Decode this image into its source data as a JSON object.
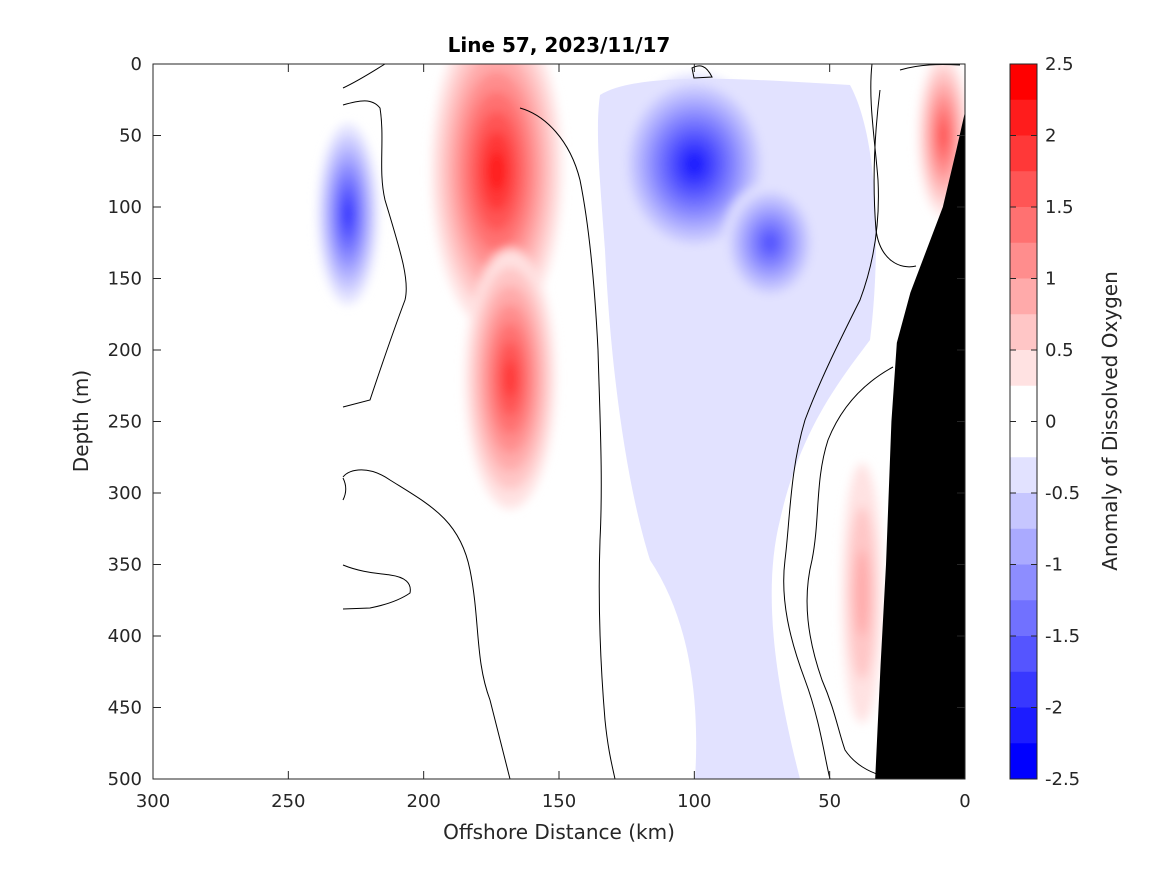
{
  "chart_data": {
    "type": "heatmap",
    "title": "Line 57, 2023/11/17",
    "xlabel": "Offshore Distance (km)",
    "ylabel": "Depth (m)",
    "xlim": [
      300,
      0
    ],
    "ylim": [
      500,
      0
    ],
    "x_ticks": [
      300,
      250,
      200,
      150,
      100,
      50,
      0
    ],
    "y_ticks": [
      0,
      50,
      100,
      150,
      200,
      250,
      300,
      350,
      400,
      450,
      500
    ],
    "y_reversed": true,
    "x_reversed": true,
    "colorbar": {
      "label": "Anomaly of Dissolved Oxygen",
      "range": [
        -2.5,
        2.5
      ],
      "step": 0.25,
      "ticks": [
        2.5,
        2,
        1.5,
        1,
        0.5,
        0,
        -0.5,
        -1,
        -1.5,
        -2,
        -2.5
      ],
      "tick_labels": [
        "2.5",
        "2",
        "1.5",
        "1",
        "0.5",
        "0",
        "-0.5",
        "-1",
        "-1.5",
        "-2",
        "-2.5"
      ],
      "colors": [
        "#ff0000",
        "#ff1c1c",
        "#ff3838",
        "#ff5555",
        "#ff7171",
        "#ff8d8d",
        "#ffaaaa",
        "#ffc6c6",
        "#ffe2e2",
        "#ffffff",
        "#ffffff",
        "#e2e2ff",
        "#c6c6ff",
        "#aaaaff",
        "#8d8dff",
        "#7171ff",
        "#5555ff",
        "#3838ff",
        "#1c1cff",
        "#0000ff"
      ]
    },
    "features": [
      {
        "sign": "positive",
        "center_x_km": 173,
        "center_depth_m": 75,
        "peak": 2.1
      },
      {
        "sign": "positive",
        "center_x_km": 168,
        "center_depth_m": 220,
        "peak": 1.75
      },
      {
        "sign": "negative",
        "center_x_km": 100,
        "center_depth_m": 70,
        "peak": -2.0
      },
      {
        "sign": "negative",
        "center_x_km": 72,
        "center_depth_m": 125,
        "peak": -1.6
      },
      {
        "sign": "negative",
        "center_x_km": 228,
        "center_depth_m": 105,
        "peak": -1.9
      },
      {
        "sign": "positive",
        "center_x_km": 8,
        "center_depth_m": 50,
        "peak": 1.7
      },
      {
        "sign": "positive",
        "center_x_km": 38,
        "center_depth_m": 370,
        "peak": 0.9
      }
    ],
    "bathymetry": [
      [
        0,
        35
      ],
      [
        3,
        60
      ],
      [
        8,
        100
      ],
      [
        15,
        135
      ],
      [
        20,
        160
      ],
      [
        25,
        195
      ],
      [
        27,
        250
      ],
      [
        29,
        350
      ],
      [
        31,
        420
      ],
      [
        33,
        500
      ]
    ],
    "data_start_x_km": 230
  }
}
